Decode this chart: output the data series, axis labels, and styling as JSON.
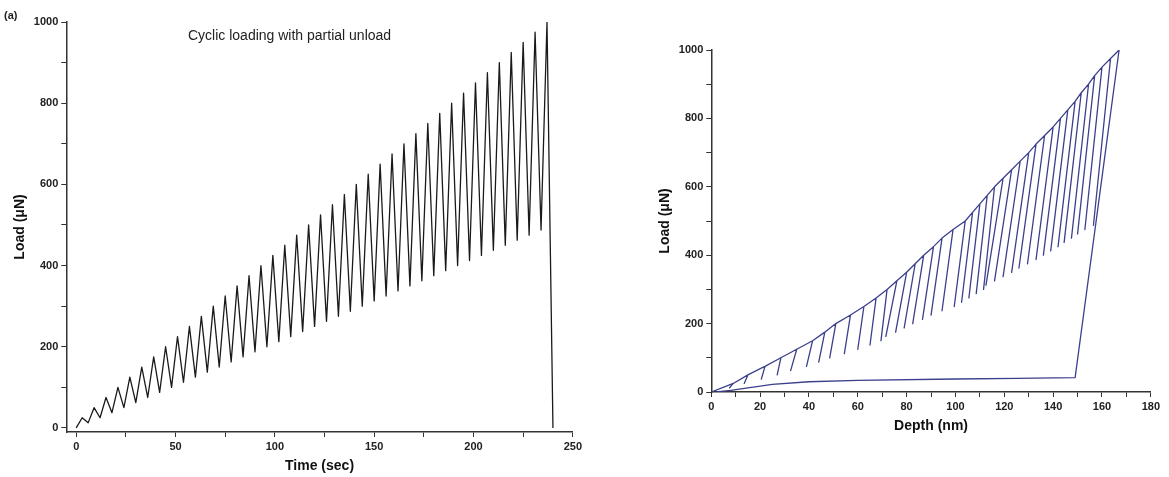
{
  "chart_data": [
    {
      "type": "line",
      "xlabel": "Time (sec)",
      "ylabel": "Load (μN)",
      "annotations": [
        "(a)",
        "Cyclic loading with partial unload"
      ],
      "grid": false,
      "legend": false,
      "marker": "none",
      "xlim": [
        -5,
        250
      ],
      "ylim": [
        -10,
        1000
      ],
      "xticks": [
        0,
        {
          "value": 25,
          "label": null
        },
        50,
        {
          "value": 75,
          "label": null
        },
        100,
        {
          "value": 125,
          "label": null
        },
        150,
        {
          "value": 175,
          "label": null
        },
        200,
        {
          "value": 225,
          "label": null
        },
        250
      ],
      "yticks": [
        0,
        {
          "value": 100,
          "label": null
        },
        200,
        {
          "value": 300,
          "label": null
        },
        400,
        {
          "value": 500,
          "label": null
        },
        600,
        {
          "value": 700,
          "label": null
        },
        800,
        {
          "value": 900,
          "label": null
        },
        1000
      ],
      "series": [
        {
          "color": "#1a1a1a",
          "x": [
            0,
            3,
            6,
            9,
            12,
            15,
            18,
            21,
            24,
            27,
            30,
            33,
            36,
            39,
            42,
            45,
            48,
            51,
            54,
            57,
            60,
            63,
            66,
            69,
            72,
            75,
            78,
            81,
            84,
            87,
            90,
            93,
            96,
            99,
            102,
            105,
            108,
            111,
            114,
            117,
            120,
            123,
            126,
            129,
            132,
            135,
            138,
            141,
            144,
            147,
            150,
            153,
            156,
            159,
            162,
            165,
            168,
            171,
            174,
            177,
            180,
            183,
            186,
            189,
            192,
            195,
            198,
            201,
            204,
            207,
            210,
            213,
            216,
            219,
            222,
            225,
            228,
            231,
            234,
            237,
            240
          ],
          "values": [
            0,
            25,
            12.5,
            50,
            25,
            75,
            37.5,
            100,
            50,
            125,
            62.5,
            150,
            75,
            175,
            87.5,
            200,
            100,
            225,
            112.5,
            250,
            125,
            275,
            137.5,
            300,
            150,
            325,
            162.5,
            350,
            175,
            375,
            187.5,
            400,
            200,
            425,
            212.5,
            450,
            225,
            475,
            237.5,
            500,
            250,
            525,
            262.5,
            550,
            275,
            575,
            287.5,
            600,
            300,
            625,
            312.5,
            650,
            325,
            675,
            337.5,
            700,
            350,
            725,
            362.5,
            750,
            375,
            775,
            387.5,
            800,
            400,
            825,
            412.5,
            850,
            425,
            875,
            437.5,
            900,
            450,
            925,
            462.5,
            950,
            475,
            975,
            487.5,
            1000,
            0
          ]
        }
      ]
    },
    {
      "type": "line",
      "xlabel": "Depth (nm)",
      "ylabel": "Load (μN)",
      "grid": false,
      "legend": false,
      "marker": "none",
      "xlim": [
        0,
        180
      ],
      "ylim": [
        0,
        1000
      ],
      "xticks": [
        0,
        {
          "value": 10,
          "label": null
        },
        20,
        {
          "value": 30,
          "label": null
        },
        40,
        {
          "value": 50,
          "label": null
        },
        60,
        {
          "value": 70,
          "label": null
        },
        80,
        {
          "value": 90,
          "label": null
        },
        100,
        {
          "value": 110,
          "label": null
        },
        120,
        {
          "value": 130,
          "label": null
        },
        140,
        {
          "value": 150,
          "label": null
        },
        160,
        {
          "value": 170,
          "label": null
        },
        180
      ],
      "yticks": [
        0,
        {
          "value": 100,
          "label": null
        },
        200,
        {
          "value": 300,
          "label": null
        },
        400,
        {
          "value": 500,
          "label": null
        },
        600,
        {
          "value": 700,
          "label": null
        },
        800,
        {
          "value": 900,
          "label": null
        },
        1000
      ],
      "series": [
        {
          "color": "#3b3f8c",
          "x": [
            0,
            9,
            7.5,
            9,
            15,
            13.5,
            15,
            22,
            20.5,
            22,
            28.5,
            27,
            28.5,
            35,
            32.5,
            35,
            41.5,
            39,
            41.5,
            46.5,
            44,
            46.5,
            51,
            48.5,
            51,
            57,
            54.5,
            57,
            62.5,
            60,
            62.5,
            67.5,
            65,
            67.5,
            72,
            69.5,
            72,
            76,
            71.5,
            76,
            80,
            75.5,
            80,
            83.5,
            79,
            83.5,
            87,
            82.5,
            87,
            91,
            86.5,
            91,
            94.5,
            90,
            94.5,
            99,
            94.5,
            99,
            104,
            99.5,
            104,
            107,
            102.5,
            107,
            110,
            105.5,
            110,
            113,
            108.5,
            113,
            116,
            111.5,
            116,
            119.5,
            112.5,
            119.5,
            123,
            116,
            123,
            126.5,
            119.5,
            126.5,
            130,
            123,
            130,
            133,
            126,
            133,
            136.5,
            129.5,
            136.5,
            140,
            133,
            140,
            143,
            136,
            143,
            146,
            139,
            146,
            149,
            142,
            149,
            151.5,
            144.5,
            151.5,
            154.5,
            147.5,
            154.5,
            157,
            150,
            157,
            160,
            153,
            160,
            163.5,
            156.5,
            163.5,
            167,
            149,
            100,
            60,
            40,
            25,
            15,
            8,
            2
          ],
          "values": [
            0,
            25,
            12.5,
            25,
            50,
            25,
            50,
            75,
            37.5,
            75,
            100,
            50,
            100,
            125,
            62.5,
            125,
            150,
            75,
            150,
            175,
            87.5,
            175,
            200,
            100,
            200,
            225,
            112.5,
            225,
            250,
            125,
            250,
            275,
            137.5,
            275,
            300,
            150,
            300,
            325,
            162.5,
            325,
            350,
            175,
            350,
            375,
            187.5,
            375,
            400,
            200,
            400,
            425,
            212.5,
            425,
            450,
            225,
            450,
            475,
            237.5,
            475,
            500,
            250,
            500,
            525,
            262.5,
            525,
            550,
            275,
            550,
            575,
            287.5,
            575,
            600,
            300,
            600,
            625,
            312.5,
            625,
            650,
            325,
            650,
            675,
            337.5,
            675,
            700,
            350,
            700,
            725,
            362.5,
            725,
            750,
            375,
            750,
            775,
            387.5,
            775,
            800,
            400,
            800,
            825,
            412.5,
            825,
            850,
            425,
            850,
            875,
            437.5,
            875,
            900,
            450,
            900,
            925,
            462.5,
            925,
            950,
            475,
            950,
            975,
            487.5,
            975,
            1000,
            42,
            38,
            34,
            30,
            22,
            12,
            5,
            0
          ]
        }
      ]
    }
  ]
}
